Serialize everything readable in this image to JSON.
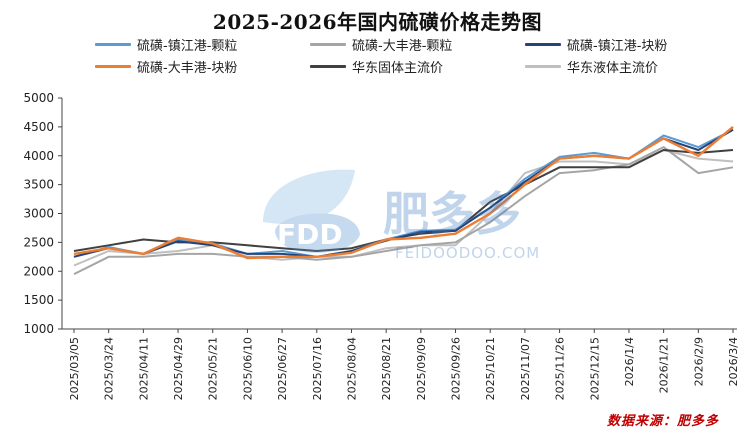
{
  "chart_data": {
    "type": "line",
    "title": "2025-2026年国内硫磺价格走势图",
    "xlabel": "",
    "ylabel": "",
    "ylim": [
      1000,
      5000
    ],
    "yticks": [
      1000,
      1500,
      2000,
      2500,
      3000,
      3500,
      4000,
      4500,
      5000
    ],
    "x_tick_labels": [
      "2025/03/05",
      "2025/03/24",
      "2025/04/11",
      "2025/04/29",
      "2025/05/21",
      "2025/06/10",
      "2025/06/27",
      "2025/07/16",
      "2025/08/04",
      "2025/08/21",
      "2025/09/09",
      "2025/09/26",
      "2025/10/21",
      "2025/11/07",
      "2025/11/26",
      "2025/12/15",
      "2026/1/4",
      "2026/1/21",
      "2026/2/9",
      "2026/3/4"
    ],
    "grid": false,
    "legend_position": "top",
    "series": [
      {
        "name": "硫磺-镇江港-颗粒",
        "color": "#5b9bd5",
        "values": [
          2250,
          2420,
          2300,
          2550,
          2480,
          2300,
          2350,
          2250,
          2350,
          2550,
          2700,
          2720,
          3100,
          3600,
          3980,
          4050,
          3950,
          4350,
          4150,
          4450
        ]
      },
      {
        "name": "硫磺-大丰港-颗粒",
        "color": "#a5a5a5",
        "values": [
          1950,
          2250,
          2250,
          2300,
          2300,
          2250,
          2250,
          2200,
          2250,
          2350,
          2450,
          2500,
          2850,
          3300,
          3700,
          3750,
          3850,
          4150,
          3700,
          3800
        ]
      },
      {
        "name": "硫磺-镇江港-块粉",
        "color": "#264478",
        "values": [
          2250,
          2400,
          2300,
          2520,
          2450,
          2300,
          2300,
          2250,
          2350,
          2530,
          2680,
          2700,
          3100,
          3550,
          3950,
          4000,
          3950,
          4300,
          4100,
          4450
        ]
      },
      {
        "name": "硫磺-大丰港-块粉",
        "color": "#ed7d31",
        "values": [
          2300,
          2400,
          2300,
          2580,
          2480,
          2230,
          2250,
          2250,
          2320,
          2550,
          2580,
          2650,
          3000,
          3500,
          3950,
          4000,
          3950,
          4300,
          4000,
          4500
        ]
      },
      {
        "name": "华东固体主流价",
        "color": "#404040",
        "values": [
          2350,
          2450,
          2550,
          2500,
          2500,
          2450,
          2400,
          2350,
          2400,
          2550,
          2650,
          2700,
          3200,
          3500,
          3800,
          3800,
          3800,
          4100,
          4050,
          4100
        ]
      },
      {
        "name": "华东液体主流价",
        "color": "#bfbfbf",
        "values": [
          2100,
          2350,
          2300,
          2350,
          2450,
          2250,
          2200,
          2250,
          2250,
          2400,
          2450,
          2450,
          3000,
          3700,
          3900,
          3900,
          3850,
          4100,
          3950,
          3900
        ]
      }
    ],
    "source": "数据来源：肥多多"
  },
  "watermark": {
    "logo_text": "FDD",
    "brand_text": "肥多多",
    "domain_text": "FEIDOODOO.COM"
  }
}
